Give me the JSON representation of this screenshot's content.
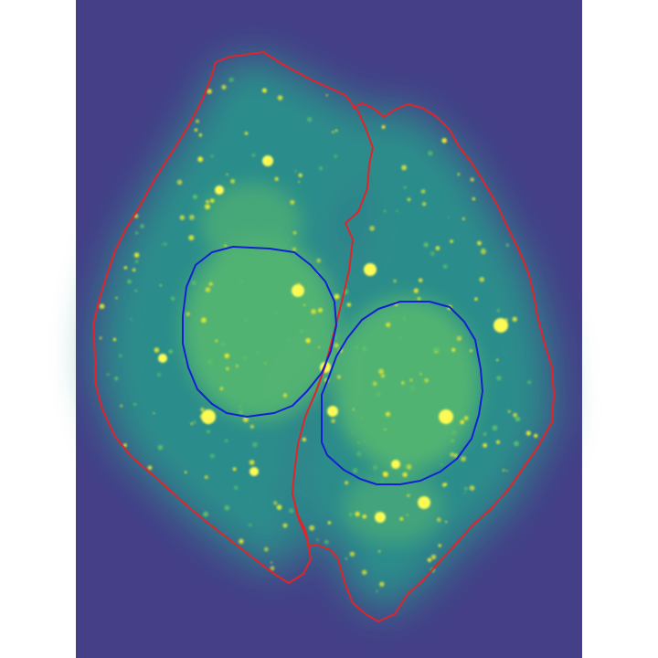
{
  "image": {
    "kind": "fluorescence micrograph",
    "colormap": "viridis",
    "background_color": "#ffffff",
    "field_color": "#443f87",
    "cell_glow_color": "#2a8d8b",
    "cell_glow_bright_color": "#5fc06a",
    "puncta_color": "#f0ec2c",
    "puncta_core_color": "#fdfb52"
  },
  "overlays": [
    {
      "type": "cell-boundary",
      "color": "#e1242a",
      "count": 2
    },
    {
      "type": "nucleus-boundary",
      "color": "#1420d2",
      "count": 2
    }
  ],
  "cells": [
    {
      "id": "left-cell",
      "has_nucleus": true
    },
    {
      "id": "right-cell",
      "has_nucleus": true
    }
  ]
}
